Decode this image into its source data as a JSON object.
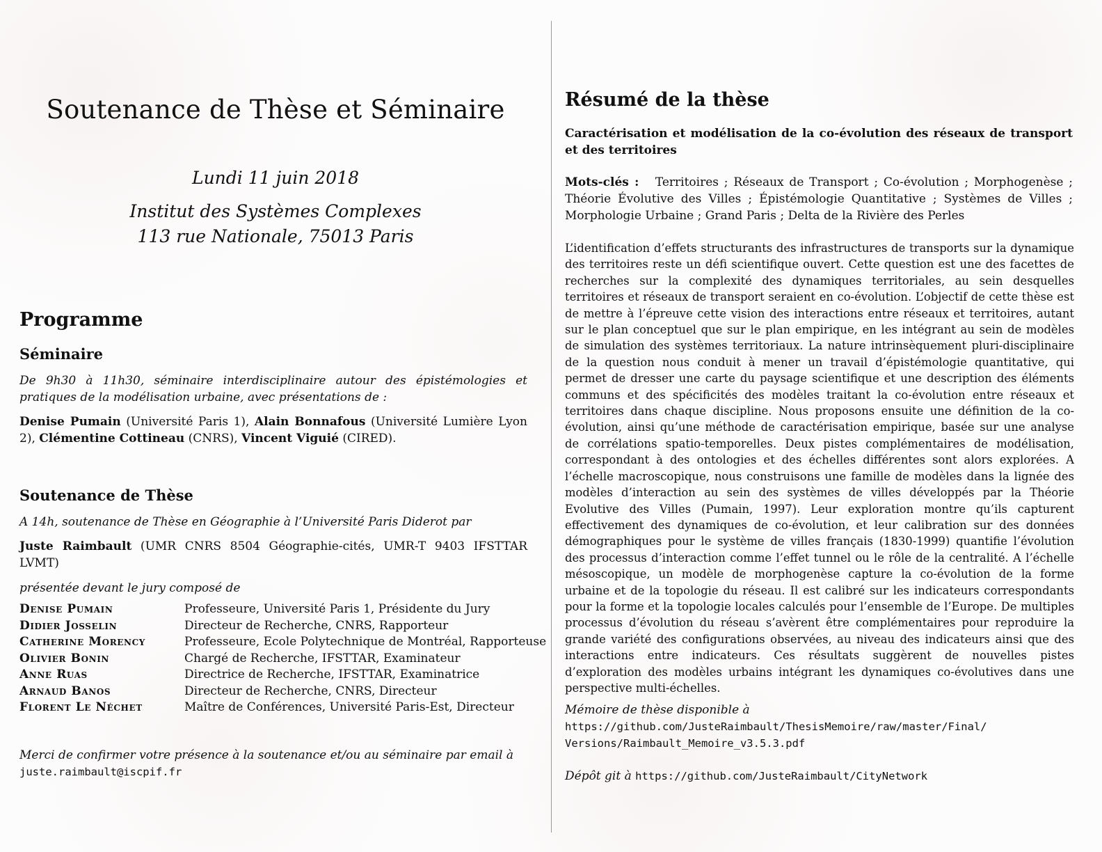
{
  "left": {
    "title": "Soutenance de Thèse et Séminaire",
    "date": "Lundi 11 juin 2018",
    "venue_line1": "Institut des Systèmes Complexes",
    "venue_line2": "113 rue Nationale, 75013 Paris",
    "programme_heading": "Programme",
    "seminaire_heading": "Séminaire",
    "seminaire_desc": "De 9h30 à 11h30, séminaire interdisciplinaire autour des épistémologies et pratiques de la modélisation urbaine, avec présentations de :",
    "speakers": [
      {
        "name": "Denise Pumain",
        "affil": " (Université Paris 1), "
      },
      {
        "name": "Alain Bonnafous",
        "affil": " (Université Lumière Lyon 2), "
      },
      {
        "name": "Clémentine Cottineau",
        "affil": " (CNRS), "
      },
      {
        "name": "Vincent Viguié",
        "affil": " (CIRED)."
      }
    ],
    "soutenance_heading": "Soutenance de Thèse",
    "soutenance_desc": "A 14h, soutenance de Thèse en Géographie à l’Université Paris Diderot par",
    "candidate_name": "Juste Raimbault",
    "candidate_affil": " (UMR CNRS 8504 Géographie-cités, UMR-T 9403 IFSTTAR LVMT)",
    "jury_intro": "présentée devant le jury composé de",
    "jury": [
      {
        "name": "Denise Pumain",
        "role": "Professeure, Université Paris 1, Présidente du Jury"
      },
      {
        "name": "Didier Josselin",
        "role": "Directeur de Recherche, CNRS, Rapporteur"
      },
      {
        "name": "Catherine Morency",
        "role": "Professeure, Ecole Polytechnique de Montréal, Rapporteuse"
      },
      {
        "name": "Olivier Bonin",
        "role": "Chargé de Recherche, IFSTTAR, Examinateur"
      },
      {
        "name": "Anne Ruas",
        "role": "Directrice de Recherche, IFSTTAR, Examinatrice"
      },
      {
        "name": "Arnaud Banos",
        "role": "Directeur de Recherche, CNRS, Directeur"
      },
      {
        "name": "Florent Le Néchet",
        "role": "Maître de Conférences, Université Paris-Est, Directeur"
      }
    ],
    "rsvp_text": "Merci de confirmer votre présence à la soutenance et/ou au séminaire par email à",
    "rsvp_email": "juste.raimbault@iscpif.fr"
  },
  "right": {
    "resume_heading": "Résumé de la thèse",
    "thesis_title": "Caractérisation et modélisation de la co-évolution des réseaux de transport et des territoires",
    "keywords_label": "Mots-clés :",
    "keywords": "Territoires ; Réseaux de Transport ; Co-évolution ; Morphogenèse ; Théorie Évolutive des Villes ; Épistémologie Quantitative ; Systèmes de Villes ; Morphologie Urbaine ; Grand Paris ; Delta de la Rivière des Perles",
    "abstract": "L’identification d’effets structurants des infrastructures de transports sur la dynamique des territoires reste un défi scientifique ouvert. Cette question est une des facettes de recherches sur la complexité des dynamiques territoriales, au sein desquelles territoires et réseaux de transport seraient en co-évolution. L’objectif de cette thèse est de mettre à l’épreuve cette vision des interactions entre réseaux et territoires, autant sur le plan conceptuel que sur le plan empirique, en les intégrant au sein de modèles de simulation des systèmes territoriaux. La nature intrinsèquement pluri-disciplinaire de la question nous conduit à mener un travail d’épistémologie quantitative, qui permet de dresser une carte du paysage scientifique et une description des éléments communs et des spécificités des modèles traitant la co-évolution entre réseaux et territoires dans chaque discipline. Nous proposons ensuite une définition de la co-évolution, ainsi qu’une méthode de caractérisation empirique, basée sur une analyse de corrélations spatio-temporelles. Deux pistes complémentaires de modélisation, correspondant à des ontologies et des échelles différentes sont alors explorées. A l’échelle macroscopique, nous construisons une famille de modèles dans la lignée des modèles d’interaction au sein des systèmes de villes développés par la Théorie Evolutive des Villes (Pumain, 1997). Leur exploration montre qu’ils capturent effectivement des dynamiques de co-évolution, et leur calibration sur des données démographiques pour le système de villes français (1830-1999) quantifie l’évolution des processus d’interaction comme l’effet tunnel ou le rôle de la centralité. A l’échelle mésoscopique, un modèle de morphogenèse capture la co-évolution de la forme urbaine et de la topologie du réseau. Il est calibré sur les indicateurs correspondants pour la forme et la topologie locales calculés pour l’ensemble de l’Europe. De multiples processus d’évolution du réseau s’avèrent être complémentaires pour reproduire la grande variété des configurations observées, au niveau des indicateurs ainsi que des interactions entre indicateurs. Ces résultats suggèrent de nouvelles pistes d’exploration des modèles urbains intégrant les dynamiques co-évolutives dans une perspective multi-échelles.",
    "memoire_label": "Mémoire de thèse disponible à",
    "memoire_url_line1": "https://github.com/JusteRaimbault/ThesisMemoire/raw/master/Final/",
    "memoire_url_line2": "Versions/Raimbault_Memoire_v3.5.3.pdf",
    "git_label": "Dépôt git à",
    "git_url": "https://github.com/JusteRaimbault/CityNetwork"
  }
}
